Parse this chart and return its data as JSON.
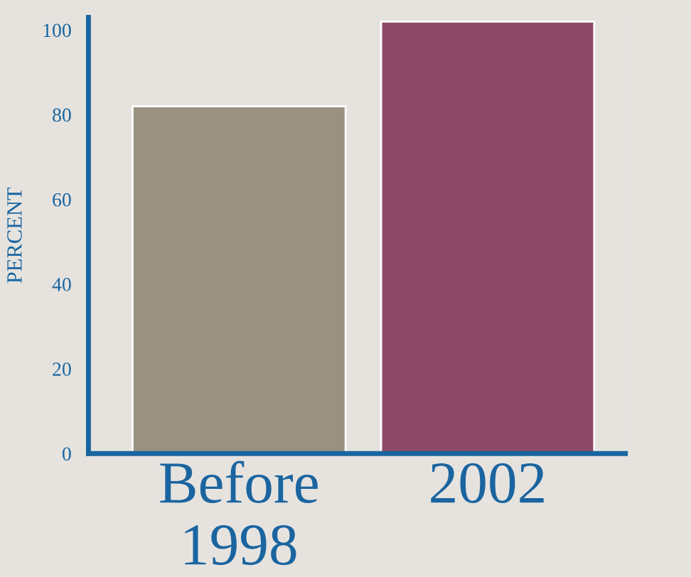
{
  "chart_data": {
    "type": "bar",
    "ylabel": "PERCENT",
    "categories": [
      "Before\n1998",
      "2002"
    ],
    "values": [
      82,
      102
    ],
    "colors": [
      "#999280",
      "#8d4a66"
    ],
    "ylim": [
      0,
      103
    ],
    "yticks": [
      0,
      20,
      40,
      60,
      80,
      100
    ],
    "grid": false,
    "legend": false
  }
}
